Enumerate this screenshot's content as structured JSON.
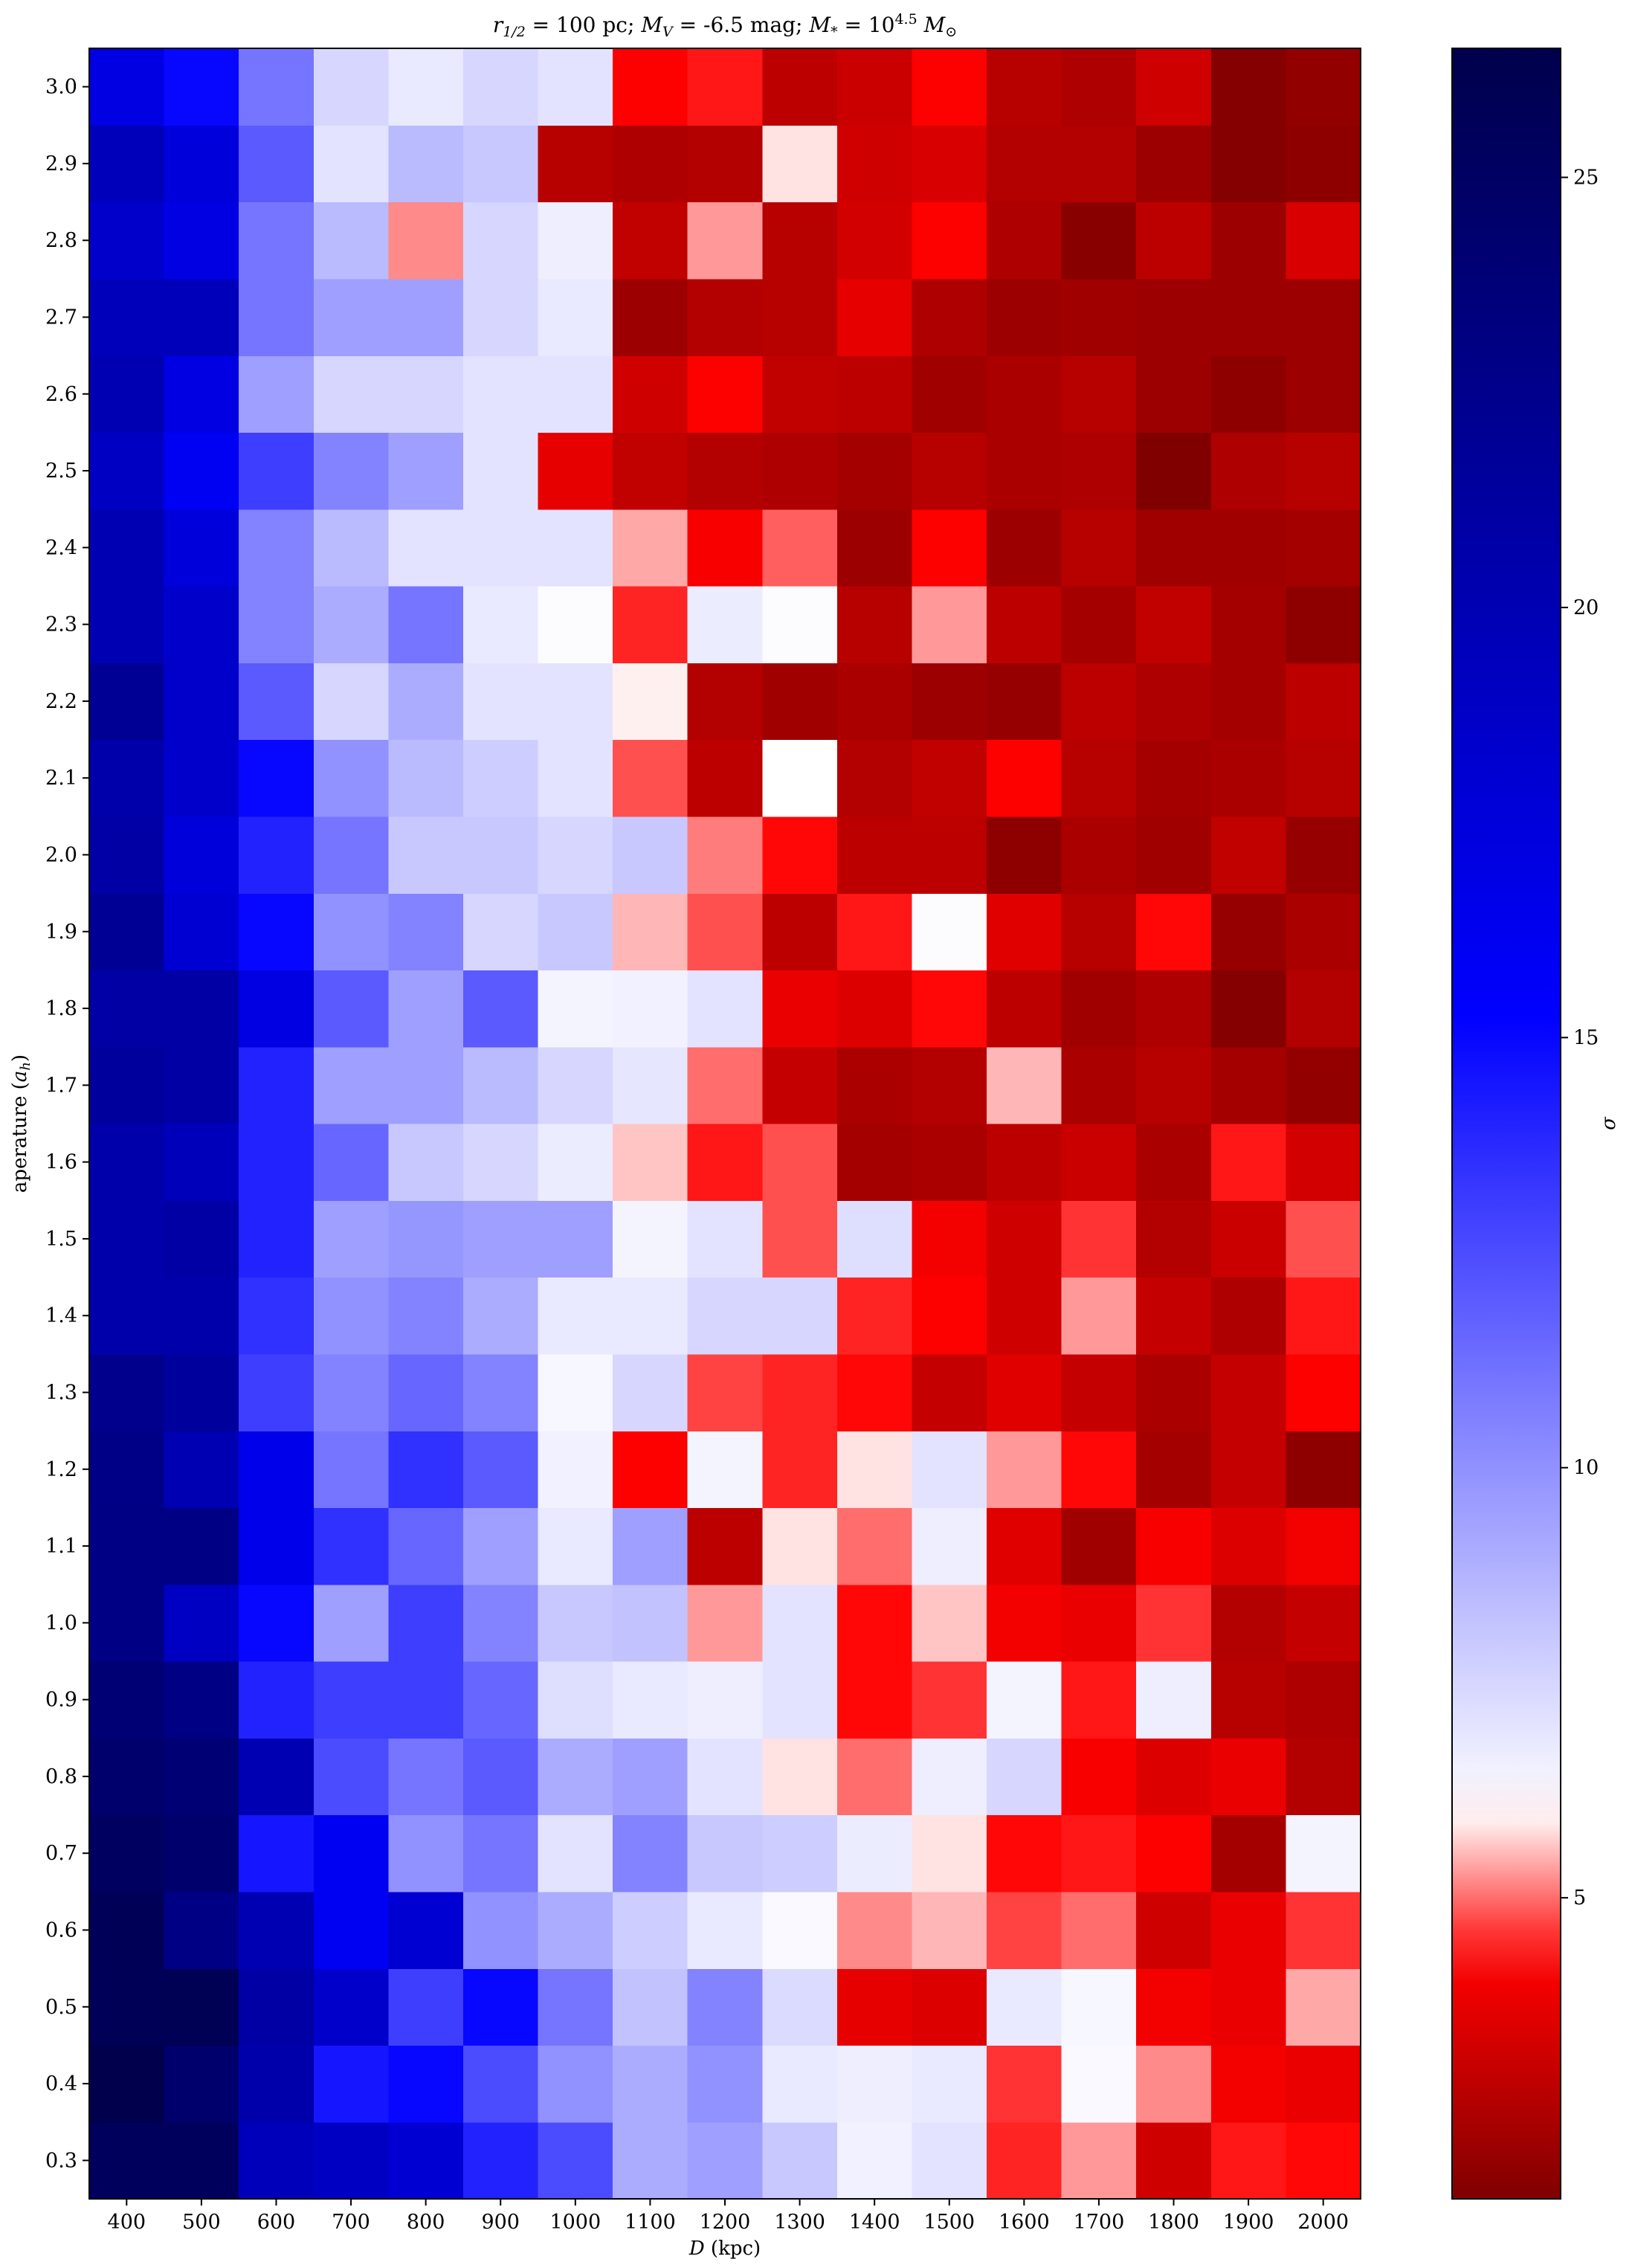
{
  "chart_data": {
    "type": "heatmap",
    "title": "r_{1/2} = 100 pc; M_V = -6.5 mag; M_* = 10^{4.5} M_⊙",
    "title_parts": {
      "r": "r",
      "r_sub": "1/2",
      "r_val": " = 100 pc; ",
      "mv": "M",
      "mv_sub": "V",
      "mv_val": " = -6.5 mag; ",
      "ms": "M",
      "ms_sub": "*",
      "ms_eq": " = 10",
      "ms_exp": "4.5",
      "ms_unit": " M",
      "ms_unit_sub": "⊙"
    },
    "xlabel": "D (kpc)",
    "xlabel_parts": {
      "var": "D",
      "rest": " (kpc)"
    },
    "ylabel": "aperature (a_h)",
    "ylabel_parts": {
      "pre": "aperature (",
      "var": "a",
      "sub": "h",
      "post": ")"
    },
    "colorbar_label": "σ",
    "colorbar_ticks": [
      5,
      10,
      15,
      20,
      25
    ],
    "colorbar_range": [
      1.5,
      26.5
    ],
    "colormap": "seismic_r",
    "center_value": 6.0,
    "x": [
      400,
      500,
      600,
      700,
      800,
      900,
      1000,
      1100,
      1200,
      1300,
      1400,
      1500,
      1600,
      1700,
      1800,
      1900,
      2000
    ],
    "y": [
      0.3,
      0.4,
      0.5,
      0.6,
      0.7,
      0.8,
      0.9,
      1.0,
      1.1,
      1.2,
      1.3,
      1.4,
      1.5,
      1.6,
      1.7,
      1.8,
      1.9,
      2.0,
      2.1,
      2.2,
      2.3,
      2.4,
      2.5,
      2.6,
      2.7,
      2.8,
      2.9,
      3.0
    ],
    "x_tick_labels": [
      "400",
      "500",
      "600",
      "700",
      "800",
      "900",
      "1000",
      "1100",
      "1200",
      "1300",
      "1400",
      "1500",
      "1600",
      "1700",
      "1800",
      "1900",
      "2000"
    ],
    "y_tick_labels": [
      "0.3",
      "0.4",
      "0.5",
      "0.6",
      "0.7",
      "0.8",
      "0.9",
      "1.0",
      "1.1",
      "1.2",
      "1.3",
      "1.4",
      "1.5",
      "1.6",
      "1.7",
      "1.8",
      "1.9",
      "2.0",
      "2.1",
      "2.2",
      "2.3",
      "2.4",
      "2.5",
      "2.6",
      "2.7",
      "2.8",
      "2.9",
      "3.0"
    ],
    "values": [
      [
        25.5,
        25.5,
        19.5,
        19.0,
        18.0,
        14.0,
        12.5,
        9.0,
        9.5,
        8.0,
        6.5,
        7.0,
        4.5,
        5.3,
        3.2,
        4.4,
        4.3
      ],
      [
        26.5,
        24.5,
        20.5,
        14.5,
        15.0,
        12.5,
        10.0,
        9.0,
        10.0,
        6.8,
        6.6,
        6.8,
        4.6,
        6.2,
        5.2,
        4.0,
        3.8
      ],
      [
        25.8,
        26.0,
        21.0,
        18.5,
        13.0,
        15.0,
        11.0,
        8.2,
        10.5,
        7.3,
        3.7,
        3.5,
        6.8,
        6.3,
        4.0,
        3.8,
        5.4
      ],
      [
        25.8,
        23.0,
        20.0,
        16.0,
        18.0,
        10.0,
        9.0,
        7.8,
        6.8,
        6.2,
        5.2,
        5.5,
        4.7,
        5.0,
        3.2,
        3.8,
        4.6
      ],
      [
        25.2,
        24.5,
        14.5,
        16.0,
        10.0,
        11.0,
        7.0,
        10.5,
        8.0,
        7.8,
        6.7,
        5.8,
        4.3,
        4.4,
        4.2,
        2.3,
        6.4
      ],
      [
        24.5,
        24.0,
        20.0,
        12.5,
        11.0,
        12.0,
        9.0,
        9.5,
        7.0,
        5.8,
        5.0,
        6.6,
        7.5,
        4.1,
        3.5,
        3.8,
        2.6
      ],
      [
        24.0,
        23.0,
        14.0,
        13.0,
        13.0,
        11.5,
        7.2,
        6.8,
        6.6,
        7.0,
        4.3,
        4.6,
        6.4,
        4.4,
        6.6,
        2.7,
        2.5
      ],
      [
        23.0,
        19.0,
        15.0,
        9.5,
        13.0,
        10.5,
        8.0,
        8.2,
        5.3,
        7.0,
        4.3,
        5.6,
        4.0,
        3.8,
        4.6,
        2.6,
        3.0
      ],
      [
        23.0,
        23.0,
        16.5,
        13.5,
        11.5,
        9.5,
        6.8,
        9.5,
        2.8,
        5.8,
        5.0,
        6.6,
        3.6,
        2.2,
        4.1,
        3.5,
        4.0
      ],
      [
        22.8,
        20.0,
        16.5,
        11.0,
        13.5,
        12.0,
        6.5,
        4.2,
        6.4,
        4.5,
        5.8,
        7.0,
        5.3,
        4.3,
        2.3,
        3.0,
        1.8
      ],
      [
        22.5,
        21.5,
        13.0,
        10.5,
        11.5,
        10.5,
        6.3,
        7.5,
        4.7,
        4.5,
        4.3,
        3.0,
        3.6,
        3.0,
        2.4,
        3.0,
        4.2
      ],
      [
        20.5,
        20.5,
        13.5,
        10.0,
        10.5,
        9.0,
        6.8,
        6.8,
        7.5,
        7.5,
        4.5,
        4.2,
        3.2,
        5.3,
        3.0,
        2.5,
        4.4
      ],
      [
        20.5,
        21.0,
        14.0,
        9.5,
        9.8,
        9.5,
        9.5,
        6.4,
        7.0,
        4.8,
        7.2,
        4.0,
        3.2,
        4.6,
        2.6,
        3.1,
        4.8
      ],
      [
        20.5,
        19.5,
        14.0,
        11.5,
        8.0,
        7.5,
        6.7,
        5.6,
        4.4,
        4.8,
        2.3,
        2.4,
        2.8,
        3.1,
        2.4,
        4.4,
        3.3
      ],
      [
        21.5,
        21.0,
        14.0,
        9.5,
        9.5,
        8.5,
        7.5,
        6.9,
        5.0,
        3.0,
        2.4,
        2.6,
        5.5,
        2.4,
        2.7,
        2.3,
        1.9
      ],
      [
        21.0,
        21.0,
        17.0,
        12.0,
        9.5,
        12.0,
        6.4,
        6.5,
        7.0,
        3.8,
        3.5,
        4.3,
        2.8,
        2.2,
        2.5,
        1.6,
        2.6
      ],
      [
        22.0,
        18.0,
        15.0,
        10.0,
        10.5,
        7.5,
        8.0,
        5.5,
        4.8,
        2.8,
        4.4,
        6.1,
        3.6,
        2.7,
        4.3,
        2.0,
        2.4
      ],
      [
        21.0,
        17.5,
        14.0,
        11.0,
        8.0,
        8.0,
        7.5,
        8.0,
        5.1,
        4.3,
        2.8,
        2.8,
        1.8,
        2.4,
        2.2,
        2.9,
        2.0
      ],
      [
        20.5,
        18.5,
        15.0,
        10.0,
        8.5,
        7.8,
        7.0,
        4.8,
        2.8,
        6.0,
        2.6,
        2.9,
        4.2,
        2.7,
        2.3,
        2.4,
        2.7
      ],
      [
        22.0,
        18.5,
        12.0,
        7.5,
        9.0,
        7.0,
        7.0,
        5.9,
        2.6,
        2.2,
        2.4,
        2.1,
        2.0,
        2.8,
        2.5,
        2.3,
        2.8
      ],
      [
        20.0,
        18.5,
        10.5,
        9.0,
        11.0,
        6.8,
        6.1,
        4.5,
        6.7,
        6.1,
        2.7,
        5.3,
        2.8,
        2.3,
        2.9,
        2.3,
        1.8
      ],
      [
        20.0,
        17.5,
        10.5,
        8.5,
        7.0,
        7.0,
        7.0,
        5.4,
        4.1,
        4.9,
        2.1,
        4.2,
        2.1,
        2.7,
        2.2,
        2.2,
        2.3
      ],
      [
        19.0,
        16.0,
        13.0,
        10.5,
        9.5,
        7.0,
        3.7,
        2.9,
        2.6,
        2.5,
        2.3,
        2.7,
        2.4,
        2.5,
        1.5,
        2.5,
        2.7
      ],
      [
        20.0,
        17.0,
        9.5,
        7.5,
        7.5,
        7.0,
        7.0,
        3.2,
        4.2,
        2.9,
        2.8,
        2.2,
        2.4,
        2.7,
        2.1,
        1.8,
        2.1
      ],
      [
        19.5,
        19.5,
        11.0,
        9.5,
        9.5,
        7.5,
        6.8,
        2.1,
        2.6,
        2.7,
        3.7,
        2.5,
        2.1,
        2.2,
        2.1,
        2.1,
        2.1
      ],
      [
        18.5,
        17.0,
        11.0,
        8.5,
        5.2,
        7.5,
        6.6,
        2.9,
        5.3,
        2.7,
        3.3,
        4.2,
        2.5,
        1.7,
        2.8,
        2.1,
        3.4
      ],
      [
        19.5,
        17.5,
        12.0,
        7.0,
        8.5,
        8.0,
        2.7,
        2.5,
        2.6,
        5.8,
        3.2,
        3.4,
        2.6,
        2.6,
        2.1,
        1.6,
        1.8
      ],
      [
        17.0,
        15.0,
        11.0,
        7.5,
        6.8,
        7.5,
        7.0,
        4.2,
        4.4,
        2.8,
        3.1,
        4.2,
        2.7,
        2.5,
        3.2,
        1.6,
        1.9
      ]
    ]
  }
}
